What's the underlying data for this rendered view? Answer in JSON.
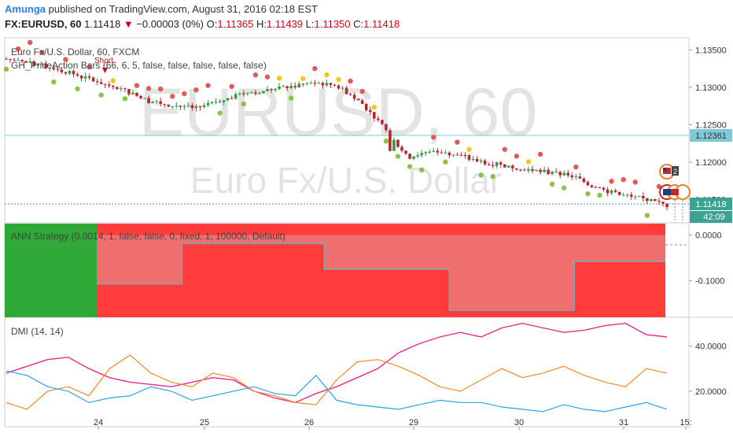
{
  "header": {
    "user": "Amunga",
    "published": " published on TradingView.com, August 31, 2016 02:18 EST",
    "symbol": "FX:EURUSD, 60",
    "last": "1.11418",
    "change": "−0.00003 (0%)",
    "open_label": "O:",
    "open": "1.11365",
    "high_label": "H:",
    "high": "1.11439",
    "low_label": "L:",
    "low": "1.11350",
    "close_label": "C:",
    "close": "1.11418"
  },
  "watermark": {
    "big": "EURUSD, 60",
    "small": "Euro Fx/U.S. Dollar"
  },
  "colors": {
    "up_candle": "#2e9e3e",
    "down_candle": "#b5282f",
    "green_dot": "#8bc34a",
    "yellow_dot": "#f5c518",
    "red_dot": "#e05a5a",
    "strategy_red": "#ff3b3b",
    "strategy_green": "#2ea836",
    "dmi_pink": "#e8298b",
    "dmi_orange": "#f08a2a",
    "dmi_blue": "#2aa3e8",
    "hline": "#7ec8d8"
  },
  "chart_data": [
    {
      "type": "candlestick",
      "title": "Euro Fx/U.S. Dollar, 60, FXCM",
      "indicator": "GH_PriceAction Bars (66, 6, 5, false, false, false, false, false)",
      "annotation": "Short",
      "ylim": [
        1.1119,
        1.1362
      ],
      "yticks": [
        "1.13500",
        "1.13000",
        "1.12500",
        "1.12000",
        "1.11500"
      ],
      "price_line": "1.12361",
      "last_price": "1.11418",
      "countdown": "42:09",
      "xticks": [
        "24",
        "25",
        "26",
        "29",
        "30",
        "31",
        "15:"
      ],
      "close_path": [
        [
          0,
          1.1338
        ],
        [
          1,
          1.1332
        ],
        [
          2,
          1.1326
        ],
        [
          3,
          1.1316
        ],
        [
          4,
          1.1306
        ],
        [
          5,
          1.1296
        ],
        [
          6,
          1.1282
        ],
        [
          7,
          1.1276
        ],
        [
          8,
          1.1272
        ],
        [
          9,
          1.1282
        ],
        [
          10,
          1.1291
        ],
        [
          11,
          1.1296
        ],
        [
          12,
          1.1301
        ],
        [
          13,
          1.1306
        ],
        [
          14,
          1.1303
        ],
        [
          15,
          1.1281
        ],
        [
          16,
          1.1246
        ],
        [
          17,
          1.1206
        ],
        [
          18,
          1.1216
        ],
        [
          19,
          1.1211
        ],
        [
          20,
          1.1201
        ],
        [
          21,
          1.1196
        ],
        [
          22,
          1.1191
        ],
        [
          23,
          1.1186
        ],
        [
          24,
          1.1181
        ],
        [
          25,
          1.1166
        ],
        [
          26,
          1.1156
        ],
        [
          27,
          1.1151
        ],
        [
          28,
          1.1142
        ]
      ]
    },
    {
      "type": "area",
      "title": "ANN Strategy (0.0014, 1, false, false, 0, fixed, 1, 100000, Default)",
      "ylim": [
        -0.175,
        0.015
      ],
      "yticks": [
        "0.0000",
        "-0.1000"
      ],
      "x": [
        0,
        0.15,
        0.15,
        0.4,
        0.4,
        0.62,
        0.62,
        0.84,
        0.84,
        1.0
      ],
      "values": [
        -0.107,
        -0.107,
        -0.018,
        -0.018,
        -0.075,
        -0.075,
        -0.165,
        -0.165,
        -0.058,
        -0.058
      ]
    },
    {
      "type": "line",
      "title": "DMI (14, 14)",
      "ylim": [
        5,
        52
      ],
      "yticks": [
        "40.0000",
        "20.0000"
      ],
      "series": [
        {
          "name": "pink",
          "values": [
            28,
            31,
            34,
            35,
            30,
            26,
            24,
            23,
            22,
            24,
            26,
            25,
            20,
            17,
            15,
            19,
            22,
            26,
            30,
            37,
            41,
            44,
            46,
            44,
            48,
            50,
            48,
            46,
            47,
            49,
            50,
            45,
            44
          ]
        },
        {
          "name": "orange",
          "values": [
            15,
            12,
            20,
            22,
            18,
            30,
            36,
            28,
            24,
            22,
            28,
            26,
            20,
            18,
            15,
            14,
            25,
            33,
            34,
            31,
            27,
            22,
            20,
            25,
            30,
            26,
            28,
            31,
            27,
            24,
            22,
            30,
            28
          ]
        },
        {
          "name": "blue",
          "values": [
            29,
            27,
            22,
            20,
            15,
            17,
            18,
            22,
            20,
            16,
            18,
            20,
            22,
            19,
            18,
            27,
            16,
            14,
            13,
            12,
            14,
            16,
            15,
            15,
            13,
            12,
            11,
            14,
            12,
            11,
            13,
            15,
            12
          ]
        }
      ]
    }
  ]
}
